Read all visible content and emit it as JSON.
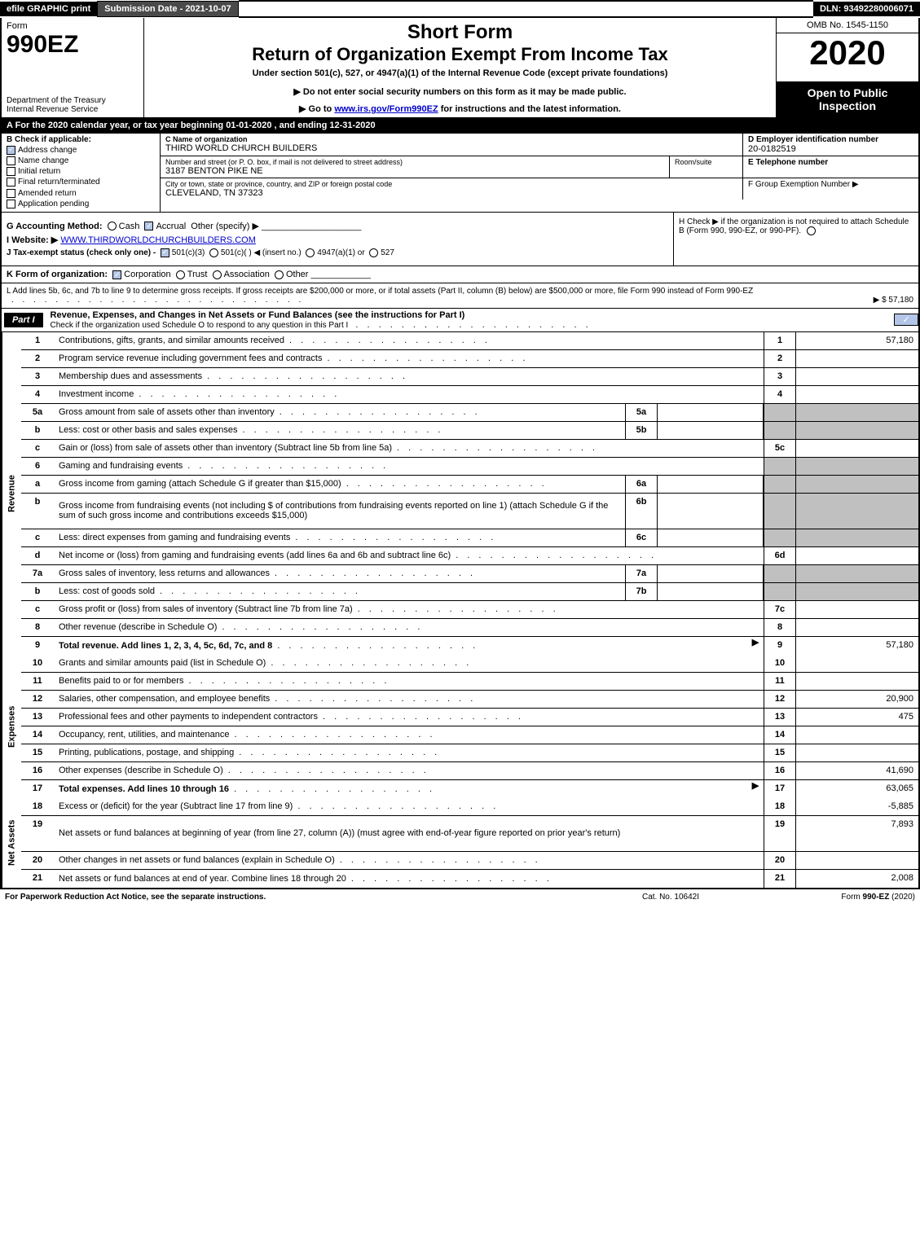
{
  "topbar": {
    "efile": "efile GRAPHIC print",
    "subdate": "Submission Date - 2021-10-07",
    "dln": "DLN: 93492280006071"
  },
  "header": {
    "form_label": "Form",
    "form_number": "990EZ",
    "dept": "Department of the Treasury\nInternal Revenue Service",
    "short_form": "Short Form",
    "return_title": "Return of Organization Exempt From Income Tax",
    "under_section": "Under section 501(c), 527, or 4947(a)(1) of the Internal Revenue Code (except private foundations)",
    "warn": "▶ Do not enter social security numbers on this form as it may be made public.",
    "goto_pre": "▶ Go to ",
    "goto_link": "www.irs.gov/Form990EZ",
    "goto_post": " for instructions and the latest information.",
    "omb": "OMB No. 1545-1150",
    "year": "2020",
    "open": "Open to Public Inspection"
  },
  "row_a": "A For the 2020 calendar year, or tax year beginning 01-01-2020 , and ending 12-31-2020",
  "section_b": {
    "title": "B Check if applicable:",
    "opts": [
      "Address change",
      "Name change",
      "Initial return",
      "Final return/terminated",
      "Amended return",
      "Application pending"
    ],
    "checked_idx": 0
  },
  "section_c": {
    "label": "C Name of organization",
    "value": "THIRD WORLD CHURCH BUILDERS",
    "addr_label": "Number and street (or P. O. box, if mail is not delivered to street address)",
    "addr_value": "3187 BENTON PIKE NE",
    "room_label": "Room/suite",
    "city_label": "City or town, state or province, country, and ZIP or foreign postal code",
    "city_value": "CLEVELAND, TN  37323"
  },
  "section_d": {
    "label": "D Employer identification number",
    "value": "20-0182519"
  },
  "section_e": {
    "label": "E Telephone number"
  },
  "section_f": {
    "label": "F Group Exemption Number  ▶"
  },
  "section_g": {
    "acct": "G Accounting Method:",
    "cash": "Cash",
    "accrual": "Accrual",
    "other": "Other (specify) ▶",
    "website_lbl": "I Website: ▶",
    "website_val": "WWW.THIRDWORLDCHURCHBUILDERS.COM",
    "tax_status": "J Tax-exempt status (check only one) -",
    "s501c3": "501(c)(3)",
    "s501c": "501(c)(  ) ◀ (insert no.)",
    "s4947": "4947(a)(1) or",
    "s527": "527"
  },
  "section_h": {
    "text": "H  Check ▶      if the organization is not required to attach Schedule B (Form 990, 990-EZ, or 990-PF)."
  },
  "row_k": {
    "label": "K Form of organization:",
    "opts": [
      "Corporation",
      "Trust",
      "Association",
      "Other"
    ],
    "checked_idx": 0
  },
  "row_l": {
    "text": "L Add lines 5b, 6c, and 7b to line 9 to determine gross receipts. If gross receipts are $200,000 or more, or if total assets (Part II, column (B) below) are $500,000 or more, file Form 990 instead of Form 990-EZ",
    "amount": "▶ $ 57,180"
  },
  "part1": {
    "tag": "Part I",
    "title": "Revenue, Expenses, and Changes in Net Assets or Fund Balances (see the instructions for Part I)",
    "subtitle": "Check if the organization used Schedule O to respond to any question in this Part I"
  },
  "section_labels": {
    "revenue": "Revenue",
    "expenses": "Expenses",
    "net_assets": "Net Assets"
  },
  "lines": [
    {
      "n": "1",
      "d": "Contributions, gifts, grants, and similar amounts received",
      "r": "1",
      "v": "57,180"
    },
    {
      "n": "2",
      "d": "Program service revenue including government fees and contracts",
      "r": "2",
      "v": ""
    },
    {
      "n": "3",
      "d": "Membership dues and assessments",
      "r": "3",
      "v": ""
    },
    {
      "n": "4",
      "d": "Investment income",
      "r": "4",
      "v": ""
    },
    {
      "n": "5a",
      "d": "Gross amount from sale of assets other than inventory",
      "sub": "5a",
      "shaded": true
    },
    {
      "n": "b",
      "d": "Less: cost or other basis and sales expenses",
      "sub": "5b",
      "shaded": true
    },
    {
      "n": "c",
      "d": "Gain or (loss) from sale of assets other than inventory (Subtract line 5b from line 5a)",
      "r": "5c",
      "v": ""
    },
    {
      "n": "6",
      "d": "Gaming and fundraising events",
      "shaded": true,
      "noright": true
    },
    {
      "n": "a",
      "d": "Gross income from gaming (attach Schedule G if greater than $15,000)",
      "sub": "6a",
      "shaded": true
    },
    {
      "n": "b",
      "d": "Gross income from fundraising events (not including $                   of contributions from fundraising events reported on line 1) (attach Schedule G if the sum of such gross income and contributions exceeds $15,000)",
      "sub": "6b",
      "shaded": true,
      "tall": true
    },
    {
      "n": "c",
      "d": "Less: direct expenses from gaming and fundraising events",
      "sub": "6c",
      "shaded": true
    },
    {
      "n": "d",
      "d": "Net income or (loss) from gaming and fundraising events (add lines 6a and 6b and subtract line 6c)",
      "r": "6d",
      "v": ""
    },
    {
      "n": "7a",
      "d": "Gross sales of inventory, less returns and allowances",
      "sub": "7a",
      "shaded": true
    },
    {
      "n": "b",
      "d": "Less: cost of goods sold",
      "sub": "7b",
      "shaded": true
    },
    {
      "n": "c",
      "d": "Gross profit or (loss) from sales of inventory (Subtract line 7b from line 7a)",
      "r": "7c",
      "v": ""
    },
    {
      "n": "8",
      "d": "Other revenue (describe in Schedule O)",
      "r": "8",
      "v": ""
    },
    {
      "n": "9",
      "d": "Total revenue. Add lines 1, 2, 3, 4, 5c, 6d, 7c, and 8",
      "r": "9",
      "v": "57,180",
      "bold": true,
      "arrow": true
    }
  ],
  "exp_lines": [
    {
      "n": "10",
      "d": "Grants and similar amounts paid (list in Schedule O)",
      "r": "10",
      "v": ""
    },
    {
      "n": "11",
      "d": "Benefits paid to or for members",
      "r": "11",
      "v": ""
    },
    {
      "n": "12",
      "d": "Salaries, other compensation, and employee benefits",
      "r": "12",
      "v": "20,900"
    },
    {
      "n": "13",
      "d": "Professional fees and other payments to independent contractors",
      "r": "13",
      "v": "475"
    },
    {
      "n": "14",
      "d": "Occupancy, rent, utilities, and maintenance",
      "r": "14",
      "v": ""
    },
    {
      "n": "15",
      "d": "Printing, publications, postage, and shipping",
      "r": "15",
      "v": ""
    },
    {
      "n": "16",
      "d": "Other expenses (describe in Schedule O)",
      "r": "16",
      "v": "41,690"
    },
    {
      "n": "17",
      "d": "Total expenses. Add lines 10 through 16",
      "r": "17",
      "v": "63,065",
      "bold": true,
      "arrow": true
    }
  ],
  "net_lines": [
    {
      "n": "18",
      "d": "Excess or (deficit) for the year (Subtract line 17 from line 9)",
      "r": "18",
      "v": "-5,885"
    },
    {
      "n": "19",
      "d": "Net assets or fund balances at beginning of year (from line 27, column (A)) (must agree with end-of-year figure reported on prior year's return)",
      "r": "19",
      "v": "7,893",
      "tall": true
    },
    {
      "n": "20",
      "d": "Other changes in net assets or fund balances (explain in Schedule O)",
      "r": "20",
      "v": ""
    },
    {
      "n": "21",
      "d": "Net assets or fund balances at end of year. Combine lines 18 through 20",
      "r": "21",
      "v": "2,008"
    }
  ],
  "footer": {
    "left": "For Paperwork Reduction Act Notice, see the separate instructions.",
    "mid": "Cat. No. 10642I",
    "right_pre": "Form ",
    "right_bold": "990-EZ",
    "right_post": " (2020)"
  }
}
